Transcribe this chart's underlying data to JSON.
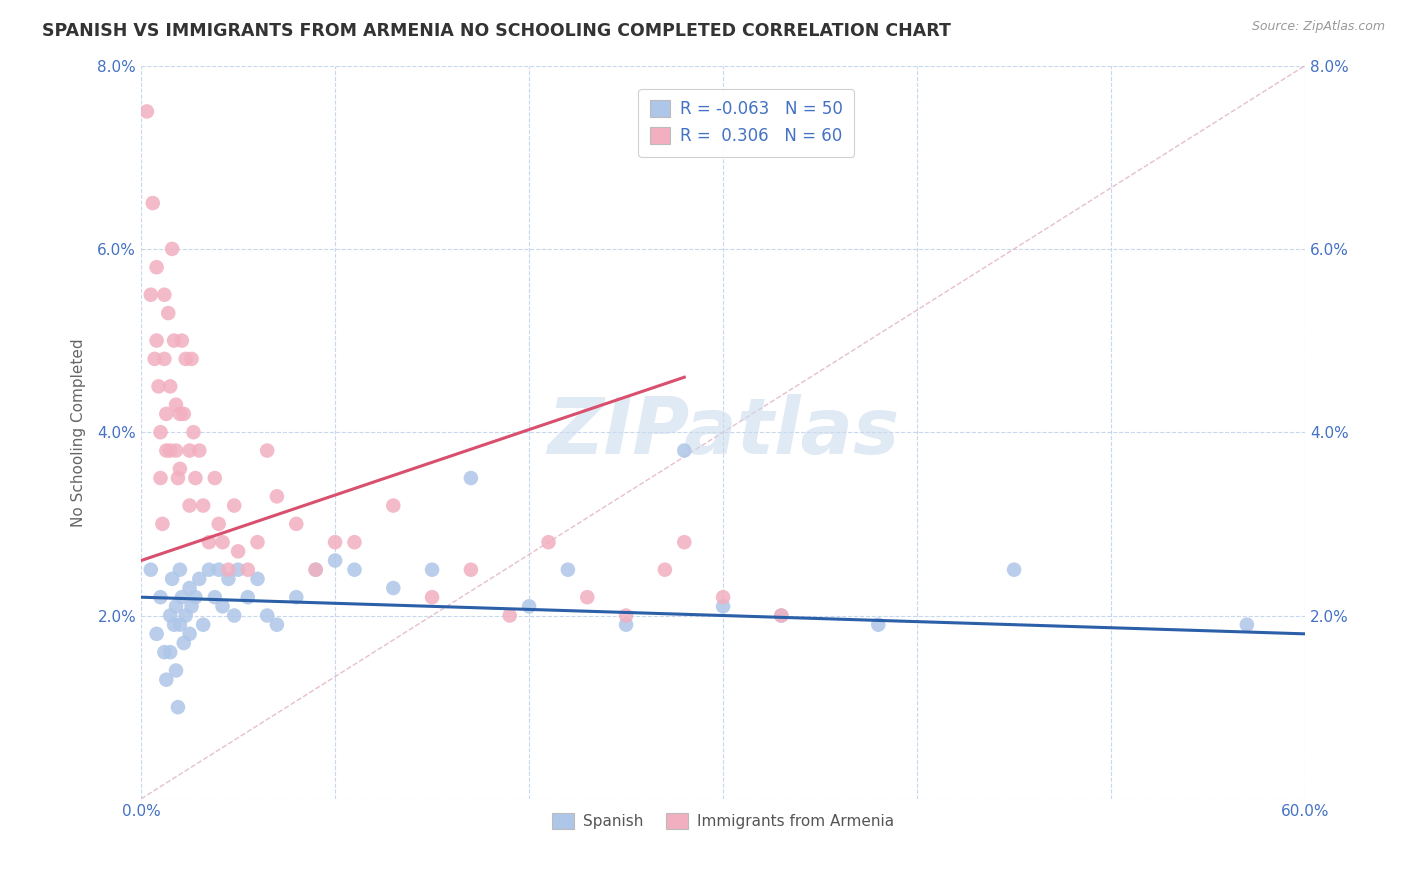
{
  "title": "SPANISH VS IMMIGRANTS FROM ARMENIA NO SCHOOLING COMPLETED CORRELATION CHART",
  "source": "Source: ZipAtlas.com",
  "ylabel": "No Schooling Completed",
  "xlim": [
    0.0,
    0.6
  ],
  "ylim": [
    0.0,
    0.08
  ],
  "xticks": [
    0.0,
    0.1,
    0.2,
    0.3,
    0.4,
    0.5,
    0.6
  ],
  "xticklabels": [
    "0.0%",
    "",
    "",
    "",
    "",
    "",
    "60.0%"
  ],
  "yticks": [
    0.0,
    0.02,
    0.04,
    0.06,
    0.08
  ],
  "yticklabels": [
    "",
    "2.0%",
    "4.0%",
    "6.0%",
    "8.0%"
  ],
  "blue_R": "-0.063",
  "blue_N": "50",
  "pink_R": "0.306",
  "pink_N": "60",
  "blue_color": "#aec6e8",
  "pink_color": "#f2afc0",
  "blue_line_color": "#2b5fa8",
  "pink_line_color": "#d94f6e",
  "ref_line_color": "#e0b0c0",
  "watermark_color": "#ccdcee",
  "legend_label_color": "#4472c4",
  "tick_color": "#4472c4",
  "ylabel_color": "#666666",
  "blue_scatter_x": [
    0.005,
    0.008,
    0.01,
    0.012,
    0.013,
    0.015,
    0.015,
    0.016,
    0.017,
    0.018,
    0.018,
    0.019,
    0.02,
    0.02,
    0.021,
    0.022,
    0.023,
    0.025,
    0.025,
    0.026,
    0.028,
    0.03,
    0.032,
    0.035,
    0.038,
    0.04,
    0.042,
    0.045,
    0.048,
    0.05,
    0.055,
    0.06,
    0.065,
    0.07,
    0.08,
    0.09,
    0.1,
    0.11,
    0.13,
    0.15,
    0.17,
    0.2,
    0.22,
    0.25,
    0.28,
    0.3,
    0.33,
    0.38,
    0.45,
    0.57
  ],
  "blue_scatter_y": [
    0.025,
    0.018,
    0.022,
    0.016,
    0.013,
    0.02,
    0.016,
    0.024,
    0.019,
    0.021,
    0.014,
    0.01,
    0.025,
    0.019,
    0.022,
    0.017,
    0.02,
    0.023,
    0.018,
    0.021,
    0.022,
    0.024,
    0.019,
    0.025,
    0.022,
    0.025,
    0.021,
    0.024,
    0.02,
    0.025,
    0.022,
    0.024,
    0.02,
    0.019,
    0.022,
    0.025,
    0.026,
    0.025,
    0.023,
    0.025,
    0.035,
    0.021,
    0.025,
    0.019,
    0.038,
    0.021,
    0.02,
    0.019,
    0.025,
    0.019
  ],
  "pink_scatter_x": [
    0.003,
    0.005,
    0.006,
    0.007,
    0.008,
    0.008,
    0.009,
    0.01,
    0.01,
    0.011,
    0.012,
    0.012,
    0.013,
    0.013,
    0.014,
    0.015,
    0.015,
    0.016,
    0.017,
    0.018,
    0.018,
    0.019,
    0.02,
    0.02,
    0.021,
    0.022,
    0.023,
    0.025,
    0.025,
    0.026,
    0.027,
    0.028,
    0.03,
    0.032,
    0.035,
    0.038,
    0.04,
    0.042,
    0.045,
    0.048,
    0.05,
    0.055,
    0.06,
    0.065,
    0.07,
    0.08,
    0.09,
    0.1,
    0.11,
    0.13,
    0.15,
    0.17,
    0.19,
    0.21,
    0.23,
    0.25,
    0.27,
    0.28,
    0.3,
    0.33
  ],
  "pink_scatter_y": [
    0.075,
    0.055,
    0.065,
    0.048,
    0.058,
    0.05,
    0.045,
    0.04,
    0.035,
    0.03,
    0.055,
    0.048,
    0.042,
    0.038,
    0.053,
    0.045,
    0.038,
    0.06,
    0.05,
    0.043,
    0.038,
    0.035,
    0.042,
    0.036,
    0.05,
    0.042,
    0.048,
    0.038,
    0.032,
    0.048,
    0.04,
    0.035,
    0.038,
    0.032,
    0.028,
    0.035,
    0.03,
    0.028,
    0.025,
    0.032,
    0.027,
    0.025,
    0.028,
    0.038,
    0.033,
    0.03,
    0.025,
    0.028,
    0.028,
    0.032,
    0.022,
    0.025,
    0.02,
    0.028,
    0.022,
    0.02,
    0.025,
    0.028,
    0.022,
    0.02
  ],
  "blue_line_x0": 0.0,
  "blue_line_x1": 0.6,
  "blue_line_y0": 0.022,
  "blue_line_y1": 0.018,
  "pink_line_x0": 0.0,
  "pink_line_x1": 0.28,
  "pink_line_y0": 0.026,
  "pink_line_y1": 0.046
}
